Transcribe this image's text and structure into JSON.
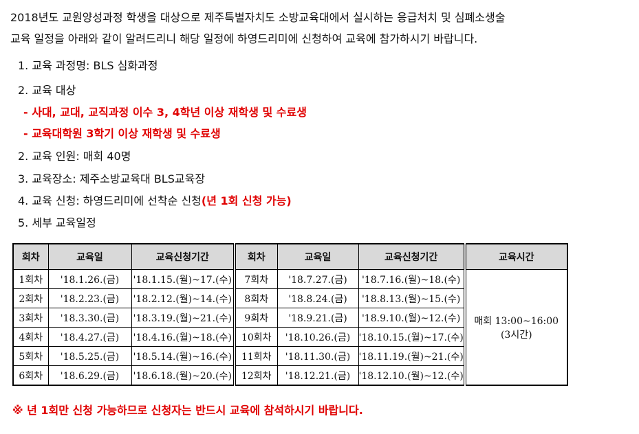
{
  "intro": [
    "2018년도 교원양성과정 학생을 대상으로 제주특별자치도 소방교육대에서 실시하는 응급처치 및 심폐소생술",
    "교육 일정을 아래와 같이 알려드리니 해당 일정에 하영드리미에 신청하여 교육에 참가하시기 바랍니다."
  ],
  "items": {
    "course": "1. 교육 과정명: BLS 심화과정",
    "target": "2. 교육 대상",
    "target_1": "- 사대, 교대, 교직과정 이수 3, 4학년 이상 재학생 및 수료생",
    "target_2": "- 교육대학원 3학기 이상 재학생 및 수료생",
    "capacity": "2. 교육 인원: 매회 40명",
    "place": "3. 교육장소: 제주소방교육대 BLS교육장",
    "apply": "4. 교육 신청: 하영드리미에 선착순 신청",
    "apply_note": "(년 1회 신청 가능)",
    "schedule": "5. 세부 교육일정"
  },
  "table": {
    "headers": [
      "회차",
      "교육일",
      "교육신청기간",
      "회차",
      "교육일",
      "교육신청기간",
      "교육시간"
    ],
    "rows": [
      [
        "1회차",
        "'18.1.26.(금)",
        "'18.1.15.(월)~17.(수)",
        "7회차",
        "'18.7.27.(금)",
        "'18.7.16.(월)~18.(수)"
      ],
      [
        "2회차",
        "'18.2.23.(금)",
        "'18.2.12.(월)~14.(수)",
        "8회차",
        "'18.8.24.(금)",
        "'18.8.13.(월)~15.(수)"
      ],
      [
        "3회차",
        "'18.3.30.(금)",
        "'18.3.19.(월)~21.(수)",
        "9회차",
        "'18.9.21.(금)",
        "'18.9.10.(월)~12.(수)"
      ],
      [
        "4회차",
        "'18.4.27.(금)",
        "'18.4.16.(월)~18.(수)",
        "10회차",
        "'18.10.26.(금)",
        "'18.10.15.(월)~17.(수)"
      ],
      [
        "5회차",
        "'18.5.25.(금)",
        "'18.5.14.(월)~16.(수)",
        "11회차",
        "'18.11.30.(금)",
        "'18.11.19.(월)~21.(수)"
      ],
      [
        "6회차",
        "'18.6.29.(금)",
        "'18.6.18.(월)~20.(수)",
        "12회차",
        "'18.12.21.(금)",
        "'18.12.10.(월)~12.(수)"
      ]
    ],
    "time_1": "매회 13:00~16:00",
    "time_2": "(3시간)"
  },
  "footer": "※ 년 1회만 신청 가능하므로 신청자는 반드시 교육에 참석하시기 바랍니다."
}
